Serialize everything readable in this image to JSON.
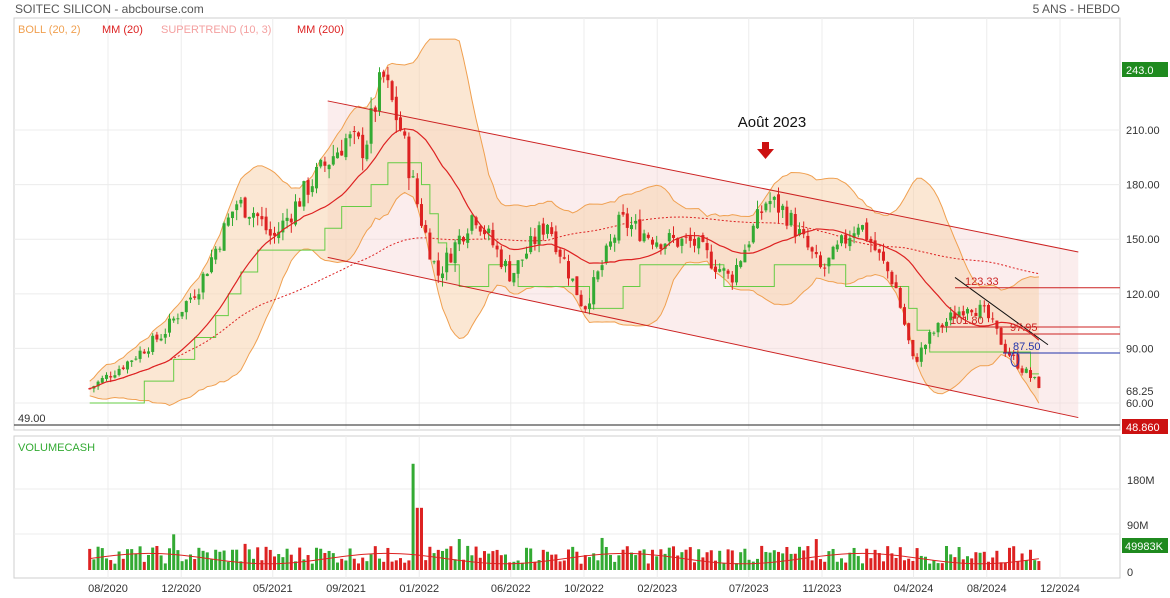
{
  "header": {
    "title": "SOITEC SILICON - abcbourse.com",
    "period": "5 ANS - HEBDO"
  },
  "indicators": [
    {
      "label": "BOLL (20, 2)",
      "color": "#f0a050"
    },
    {
      "label": "MM (20)",
      "color": "#dd2222"
    },
    {
      "label": "SUPERTREND (10, 3)",
      "color": "#f4a0a0"
    },
    {
      "label": "MM (200)",
      "color": "#dd2222"
    }
  ],
  "annotation": {
    "label": "Août 2023"
  },
  "price_axis": {
    "ticks": [
      "210.00",
      "180.00",
      "150.00",
      "120.00",
      "90.00",
      "60.00"
    ]
  },
  "badges": {
    "high": "243.0",
    "last": "68.25",
    "low": "48.860",
    "volume_last": "49983K"
  },
  "level_49": "49.00",
  "levels": [
    {
      "label": "123.33",
      "value": 123.33,
      "color": "#cc2222"
    },
    {
      "label": "101.80",
      "value": 101.8,
      "color": "#cc2222"
    },
    {
      "label": "97.95",
      "value": 97.95,
      "color": "#cc2222"
    },
    {
      "label": "87.50",
      "value": 87.5,
      "color": "#2233aa"
    }
  ],
  "volume_panel": {
    "label": "VOLUMECASH",
    "ticks": [
      "180M",
      "90M",
      "0"
    ]
  },
  "x_axis": {
    "ticks": [
      "08/2020",
      "12/2020",
      "05/2021",
      "09/2021",
      "01/2022",
      "06/2022",
      "10/2022",
      "02/2023",
      "07/2023",
      "11/2023",
      "04/2024",
      "08/2024",
      "12/2024"
    ]
  },
  "colors": {
    "up": "#33aa33",
    "down": "#dd2222",
    "bollinger": "#f0a050",
    "channel": "#cc2222",
    "supertrend_up": "#66cc44",
    "supertrend_down": "#f4a0a0"
  },
  "chart_data": {
    "type": "candlestick",
    "frequency": "weekly",
    "price_range": [
      49,
      243
    ],
    "path": [
      {
        "date": "2020-07",
        "close": 68
      },
      {
        "date": "2020-09",
        "close": 82
      },
      {
        "date": "2020-11",
        "close": 98
      },
      {
        "date": "2021-01",
        "close": 125
      },
      {
        "date": "2021-03",
        "close": 170
      },
      {
        "date": "2021-04",
        "close": 165
      },
      {
        "date": "2021-05",
        "close": 150
      },
      {
        "date": "2021-07",
        "close": 180
      },
      {
        "date": "2021-09",
        "close": 205
      },
      {
        "date": "2021-10",
        "close": 200
      },
      {
        "date": "2021-11",
        "close": 240
      },
      {
        "date": "2021-12",
        "close": 210
      },
      {
        "date": "2022-01",
        "close": 165
      },
      {
        "date": "2022-02",
        "close": 130
      },
      {
        "date": "2022-04",
        "close": 165
      },
      {
        "date": "2022-06",
        "close": 130
      },
      {
        "date": "2022-08",
        "close": 160
      },
      {
        "date": "2022-10",
        "close": 112
      },
      {
        "date": "2022-12",
        "close": 160
      },
      {
        "date": "2023-02",
        "close": 150
      },
      {
        "date": "2023-04",
        "close": 148
      },
      {
        "date": "2023-06",
        "close": 128
      },
      {
        "date": "2023-08",
        "close": 172
      },
      {
        "date": "2023-09",
        "close": 165
      },
      {
        "date": "2023-11",
        "close": 132
      },
      {
        "date": "2024-01",
        "close": 160
      },
      {
        "date": "2024-03",
        "close": 125
      },
      {
        "date": "2024-04",
        "close": 82
      },
      {
        "date": "2024-05",
        "close": 98
      },
      {
        "date": "2024-07",
        "close": 115
      },
      {
        "date": "2024-08",
        "close": 108
      },
      {
        "date": "2024-09",
        "close": 90
      },
      {
        "date": "2024-10",
        "close": 78
      },
      {
        "date": "2024-11",
        "close": 68.25
      }
    ],
    "channel": {
      "upper": [
        {
          "date": "2021-08",
          "value": 226
        },
        {
          "date": "2025-01",
          "value": 143
        }
      ],
      "lower": [
        {
          "date": "2021-08",
          "value": 140
        },
        {
          "date": "2025-01",
          "value": 52
        }
      ]
    },
    "volume_range_millions": [
      0,
      220
    ]
  }
}
